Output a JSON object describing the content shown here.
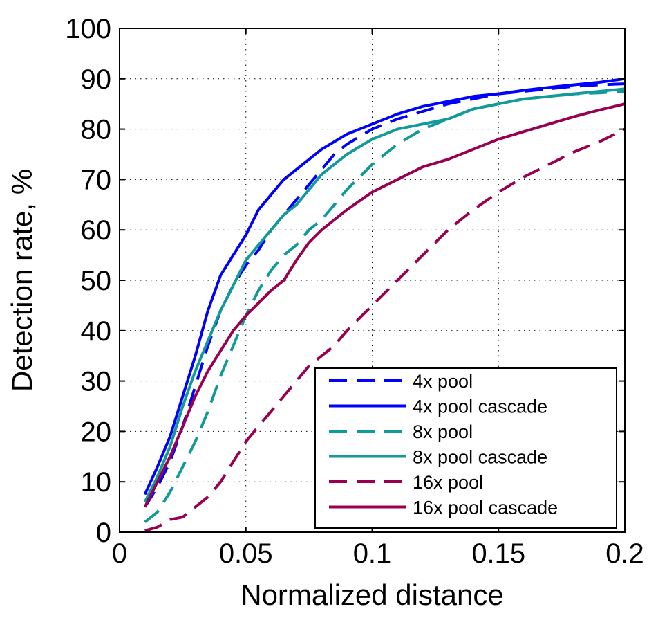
{
  "chart_data": {
    "type": "line",
    "title": "",
    "xlabel": "Normalized distance",
    "ylabel": "Detection rate, %",
    "xlim": [
      0,
      0.2
    ],
    "ylim": [
      0,
      100
    ],
    "xticks": [
      0,
      0.05,
      0.1,
      0.15,
      0.2
    ],
    "xtick_labels": [
      "0",
      "0.05",
      "0.1",
      "0.15",
      "0.2"
    ],
    "yticks": [
      0,
      10,
      20,
      30,
      40,
      50,
      60,
      70,
      80,
      90,
      100
    ],
    "ytick_labels": [
      "0",
      "10",
      "20",
      "30",
      "40",
      "50",
      "60",
      "70",
      "80",
      "90",
      "100"
    ],
    "grid": true,
    "legend_position": "bottom-right",
    "series": [
      {
        "name": "4x pool",
        "color": "#0000ff",
        "style": "dashed",
        "x": [
          0.01,
          0.015,
          0.02,
          0.025,
          0.03,
          0.035,
          0.04,
          0.045,
          0.05,
          0.055,
          0.06,
          0.065,
          0.07,
          0.075,
          0.08,
          0.085,
          0.09,
          0.1,
          0.11,
          0.12,
          0.13,
          0.14,
          0.15,
          0.16,
          0.17,
          0.18,
          0.19,
          0.2
        ],
        "values": [
          5,
          9,
          14,
          21,
          29,
          37,
          44,
          49,
          53,
          56,
          60,
          63,
          66,
          69,
          72,
          75,
          77,
          80,
          82,
          83.5,
          85,
          86,
          87,
          87.5,
          88,
          88.5,
          88.8,
          89
        ]
      },
      {
        "name": "4x pool cascade",
        "color": "#0000ff",
        "style": "solid",
        "x": [
          0.01,
          0.015,
          0.02,
          0.025,
          0.03,
          0.035,
          0.04,
          0.045,
          0.05,
          0.055,
          0.06,
          0.065,
          0.07,
          0.075,
          0.08,
          0.085,
          0.09,
          0.1,
          0.11,
          0.12,
          0.13,
          0.14,
          0.15,
          0.16,
          0.17,
          0.18,
          0.19,
          0.2
        ],
        "values": [
          7.5,
          13,
          19,
          27,
          35,
          44,
          51,
          55,
          59,
          64,
          67,
          70,
          72,
          74,
          76,
          77.5,
          79,
          81,
          83,
          84.5,
          85.5,
          86.5,
          87,
          87.7,
          88.3,
          88.8,
          89.3,
          90
        ]
      },
      {
        "name": "8x pool",
        "color": "#109a9a",
        "style": "dashed",
        "x": [
          0.01,
          0.015,
          0.02,
          0.025,
          0.03,
          0.035,
          0.04,
          0.045,
          0.05,
          0.055,
          0.06,
          0.065,
          0.07,
          0.075,
          0.08,
          0.085,
          0.09,
          0.1,
          0.11,
          0.12,
          0.13,
          0.14,
          0.15,
          0.16,
          0.17,
          0.18,
          0.19,
          0.2
        ],
        "values": [
          2,
          4,
          8,
          13,
          18,
          24,
          31,
          37,
          43,
          48,
          52,
          55,
          57,
          60,
          62,
          65,
          68,
          73,
          77,
          80,
          82,
          84,
          85,
          86,
          86.5,
          87,
          87.2,
          87.5
        ]
      },
      {
        "name": "8x pool cascade",
        "color": "#109a9a",
        "style": "solid",
        "x": [
          0.01,
          0.015,
          0.02,
          0.025,
          0.03,
          0.035,
          0.04,
          0.045,
          0.05,
          0.055,
          0.06,
          0.065,
          0.07,
          0.075,
          0.08,
          0.085,
          0.09,
          0.1,
          0.11,
          0.12,
          0.13,
          0.14,
          0.15,
          0.16,
          0.17,
          0.18,
          0.19,
          0.2
        ],
        "values": [
          6,
          11,
          17,
          25,
          32,
          38,
          44,
          49,
          54,
          57,
          60,
          63,
          65,
          68,
          71,
          73,
          75,
          78,
          80,
          81,
          82,
          84,
          85,
          86,
          86.5,
          87,
          87.5,
          88
        ]
      },
      {
        "name": "16x pool",
        "color": "#990050",
        "style": "dashed",
        "x": [
          0.01,
          0.015,
          0.02,
          0.025,
          0.03,
          0.035,
          0.04,
          0.045,
          0.05,
          0.055,
          0.06,
          0.065,
          0.07,
          0.075,
          0.08,
          0.085,
          0.09,
          0.1,
          0.11,
          0.12,
          0.13,
          0.14,
          0.15,
          0.16,
          0.17,
          0.18,
          0.19,
          0.2
        ],
        "values": [
          0.3,
          1,
          2.5,
          3,
          5,
          7,
          10,
          14,
          18,
          21,
          24,
          27,
          30,
          33,
          35,
          37,
          40,
          45,
          50,
          55,
          60,
          64,
          67.5,
          70.5,
          73,
          75.5,
          77.5,
          80
        ]
      },
      {
        "name": "16x pool cascade",
        "color": "#990050",
        "style": "solid",
        "x": [
          0.01,
          0.015,
          0.02,
          0.025,
          0.03,
          0.035,
          0.04,
          0.045,
          0.05,
          0.055,
          0.06,
          0.065,
          0.07,
          0.075,
          0.08,
          0.085,
          0.09,
          0.1,
          0.11,
          0.12,
          0.13,
          0.14,
          0.15,
          0.16,
          0.17,
          0.18,
          0.19,
          0.2
        ],
        "values": [
          5,
          10,
          15,
          21,
          27,
          32,
          36,
          40,
          43,
          45.5,
          48,
          50,
          54,
          57.5,
          60,
          62,
          64,
          67.5,
          70,
          72.5,
          74,
          76,
          78,
          79.5,
          81,
          82.5,
          83.8,
          85
        ]
      }
    ]
  }
}
